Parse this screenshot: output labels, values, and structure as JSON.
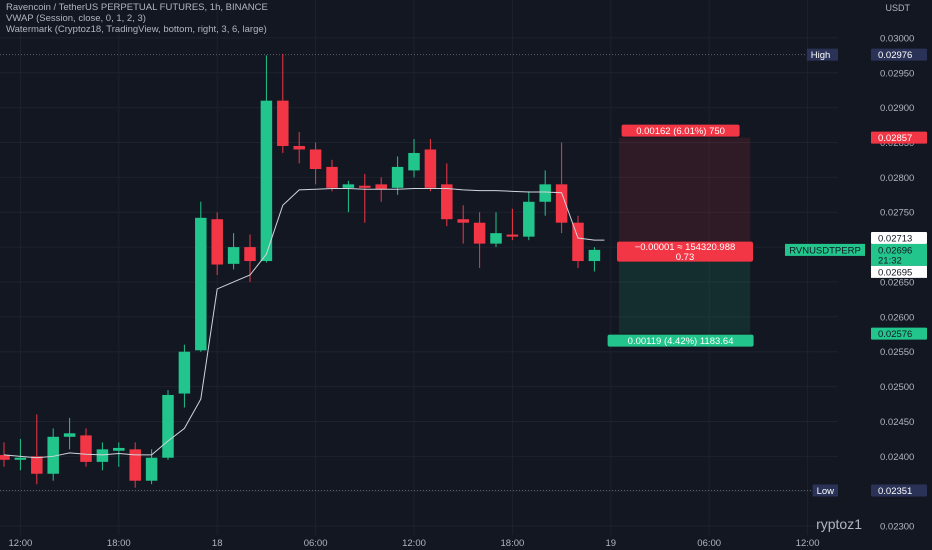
{
  "legend": {
    "line1": "Ravencoin / TetherUS PERPETUAL FUTURES, 1h, BINANCE",
    "line2": "VWAP (Session, close, 0, 1, 2, 3)",
    "line3": "Watermark (Cryptoz18, TradingView, bottom, right, 3, 6, large)"
  },
  "currency": "USDT",
  "watermark": "ryptoz1",
  "chart_data": {
    "type": "candlestick",
    "symbol": "RVNUSDTPERP",
    "y_ticks": [
      "0.03000",
      "0.02950",
      "0.02900",
      "0.02850",
      "0.02800",
      "0.02750",
      "0.02700",
      "0.02650",
      "0.02600",
      "0.02550",
      "0.02500",
      "0.02450",
      "0.02400",
      "0.02350",
      "0.02300"
    ],
    "ylim": [
      0.0228,
      0.0304
    ],
    "x_ticks": [
      {
        "label": "12:00",
        "idx": 1
      },
      {
        "label": "18:00",
        "idx": 7
      },
      {
        "label": "18",
        "idx": 13
      },
      {
        "label": "06:00",
        "idx": 19
      },
      {
        "label": "12:00",
        "idx": 25
      },
      {
        "label": "18:00",
        "idx": 31
      },
      {
        "label": "19",
        "idx": 37
      },
      {
        "label": "06:00",
        "idx": 43
      },
      {
        "label": "12:00",
        "idx": 49
      }
    ],
    "candles": [
      {
        "o": 0.02402,
        "h": 0.0242,
        "l": 0.02385,
        "c": 0.02395
      },
      {
        "o": 0.02395,
        "h": 0.02425,
        "l": 0.0238,
        "c": 0.02398
      },
      {
        "o": 0.024,
        "h": 0.0246,
        "l": 0.0236,
        "c": 0.02375
      },
      {
        "o": 0.02375,
        "h": 0.0244,
        "l": 0.02365,
        "c": 0.02428
      },
      {
        "o": 0.02428,
        "h": 0.02455,
        "l": 0.0241,
        "c": 0.02433
      },
      {
        "o": 0.0243,
        "h": 0.0244,
        "l": 0.02385,
        "c": 0.02392
      },
      {
        "o": 0.02392,
        "h": 0.0242,
        "l": 0.0238,
        "c": 0.0241
      },
      {
        "o": 0.02408,
        "h": 0.0242,
        "l": 0.02385,
        "c": 0.02412
      },
      {
        "o": 0.0241,
        "h": 0.0242,
        "l": 0.02355,
        "c": 0.02365
      },
      {
        "o": 0.02365,
        "h": 0.0241,
        "l": 0.0236,
        "c": 0.02398
      },
      {
        "o": 0.02398,
        "h": 0.02495,
        "l": 0.02395,
        "c": 0.02488
      },
      {
        "o": 0.0249,
        "h": 0.0256,
        "l": 0.0247,
        "c": 0.0255
      },
      {
        "o": 0.02552,
        "h": 0.02765,
        "l": 0.0255,
        "c": 0.02742
      },
      {
        "o": 0.0274,
        "h": 0.0275,
        "l": 0.0266,
        "c": 0.02675
      },
      {
        "o": 0.02676,
        "h": 0.0272,
        "l": 0.02668,
        "c": 0.027
      },
      {
        "o": 0.027,
        "h": 0.02718,
        "l": 0.0265,
        "c": 0.0268
      },
      {
        "o": 0.0268,
        "h": 0.02975,
        "l": 0.02678,
        "c": 0.0291
      },
      {
        "o": 0.0291,
        "h": 0.02977,
        "l": 0.02835,
        "c": 0.02845
      },
      {
        "o": 0.02845,
        "h": 0.02865,
        "l": 0.0282,
        "c": 0.0284
      },
      {
        "o": 0.0284,
        "h": 0.0285,
        "l": 0.0279,
        "c": 0.02812
      },
      {
        "o": 0.02815,
        "h": 0.02825,
        "l": 0.0278,
        "c": 0.02785
      },
      {
        "o": 0.02785,
        "h": 0.02795,
        "l": 0.0275,
        "c": 0.0279
      },
      {
        "o": 0.02788,
        "h": 0.02805,
        "l": 0.02735,
        "c": 0.02785
      },
      {
        "o": 0.0279,
        "h": 0.028,
        "l": 0.02765,
        "c": 0.02783
      },
      {
        "o": 0.02785,
        "h": 0.0283,
        "l": 0.02775,
        "c": 0.02815
      },
      {
        "o": 0.0281,
        "h": 0.02855,
        "l": 0.028,
        "c": 0.02835
      },
      {
        "o": 0.0284,
        "h": 0.02855,
        "l": 0.0278,
        "c": 0.02785
      },
      {
        "o": 0.0279,
        "h": 0.0282,
        "l": 0.0273,
        "c": 0.0274
      },
      {
        "o": 0.0274,
        "h": 0.0276,
        "l": 0.02705,
        "c": 0.02735
      },
      {
        "o": 0.02735,
        "h": 0.0275,
        "l": 0.0267,
        "c": 0.02705
      },
      {
        "o": 0.02705,
        "h": 0.0275,
        "l": 0.027,
        "c": 0.0272
      },
      {
        "o": 0.02718,
        "h": 0.02755,
        "l": 0.0271,
        "c": 0.02715
      },
      {
        "o": 0.02715,
        "h": 0.0278,
        "l": 0.0271,
        "c": 0.02765
      },
      {
        "o": 0.02765,
        "h": 0.0281,
        "l": 0.02745,
        "c": 0.0279
      },
      {
        "o": 0.0279,
        "h": 0.0285,
        "l": 0.0272,
        "c": 0.02735
      },
      {
        "o": 0.02735,
        "h": 0.02745,
        "l": 0.0267,
        "c": 0.0268
      },
      {
        "o": 0.0268,
        "h": 0.027,
        "l": 0.02665,
        "c": 0.02696
      }
    ],
    "vwap": [
      0.02402,
      0.024,
      0.02398,
      0.024,
      0.02405,
      0.02403,
      0.02402,
      0.02404,
      0.02402,
      0.02402,
      0.02422,
      0.0244,
      0.02482,
      0.0264,
      0.0265,
      0.0266,
      0.0269,
      0.0276,
      0.02782,
      0.02783,
      0.02784,
      0.02784,
      0.02783,
      0.02783,
      0.02783,
      0.02784,
      0.02784,
      0.02784,
      0.02782,
      0.02781,
      0.02781,
      0.0278,
      0.02779,
      0.02779,
      0.02778,
      0.02713,
      0.0271
    ],
    "high": {
      "label": "High",
      "value": "0.02976"
    },
    "low": {
      "label": "Low",
      "value": "0.02351"
    },
    "position": {
      "target_price": 0.02857,
      "entry_price": 0.02695,
      "stop_price": 0.02576,
      "target_label": "0.00162 (6.01%) 750",
      "stop_label": "0.00119 (4.42%) 1183.64",
      "center_line1": "−0.00001 ≈ 154320.988",
      "center_line2": "0.73",
      "start_idx": 37.5,
      "end_idx": 45.5,
      "target_value": "0.02857",
      "stop_value": "0.02576"
    },
    "price_labels": {
      "vwap_value": "0.02713",
      "last_value": "0.02696",
      "countdown": "21:32",
      "entry_value": "0.02695"
    },
    "colors": {
      "up": "#22c58b",
      "down": "#f23645",
      "vwap": "#d1d4dc",
      "background": "#131722"
    }
  }
}
